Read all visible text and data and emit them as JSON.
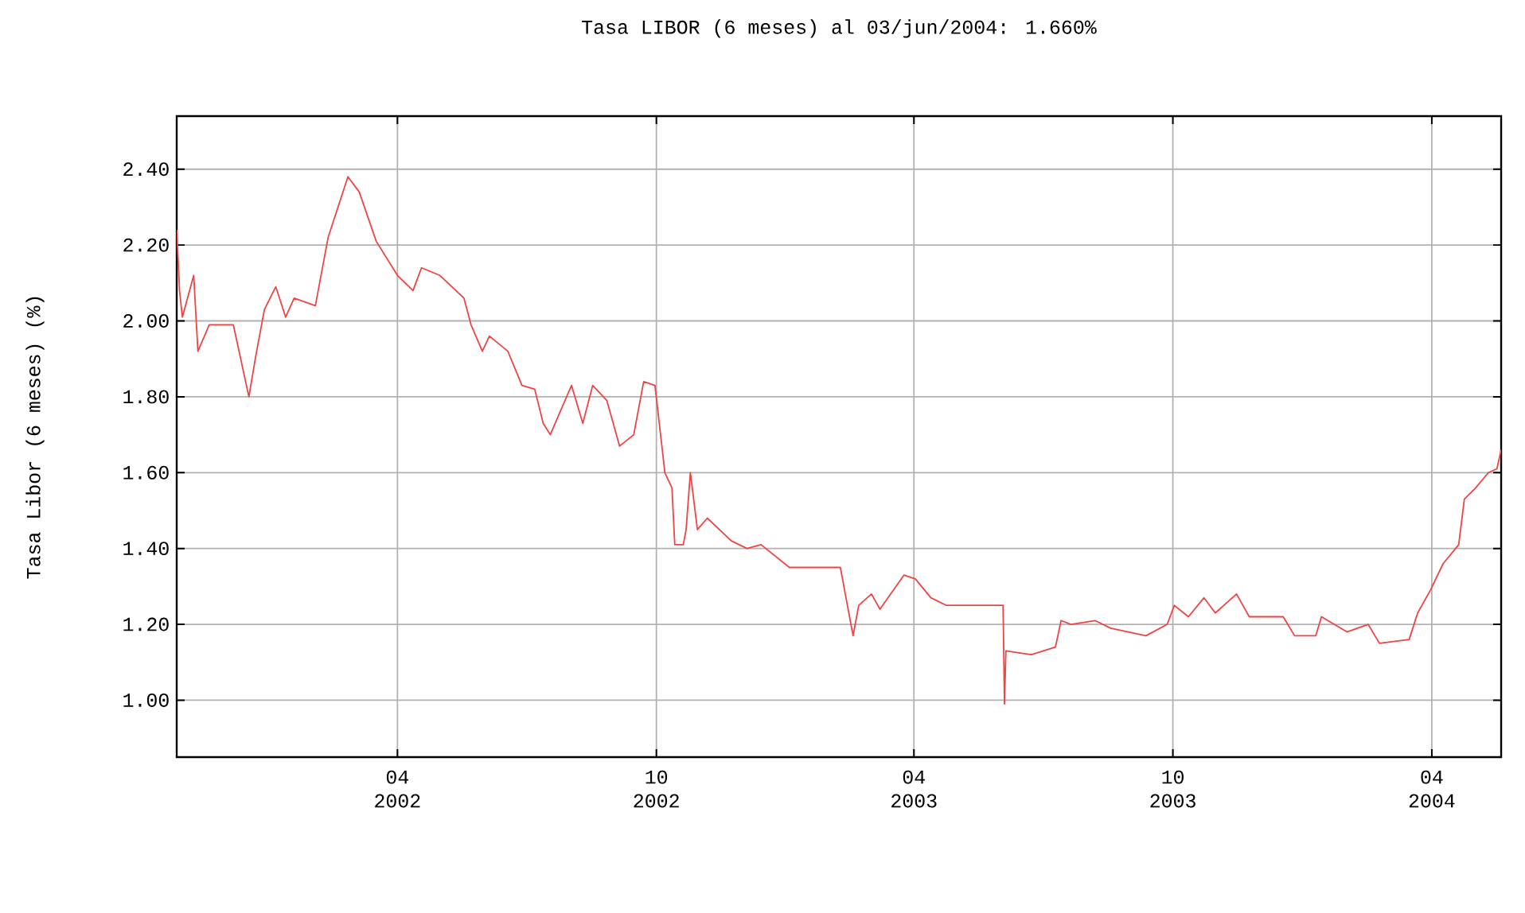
{
  "chart_data": {
    "type": "line",
    "title": "Tasa LIBOR (6 meses) al 03/jun/2004: 1.660%",
    "ylabel": "Tasa Libor (6 meses) (%)",
    "x": [
      "2001-10-27",
      "2001-10-29",
      "2001-10-31",
      "2001-11-08",
      "2001-11-11",
      "2001-11-19",
      "2001-12-06",
      "2001-12-17",
      "2001-12-22",
      "2001-12-28",
      "2002-01-05",
      "2002-01-12",
      "2002-01-18",
      "2002-02-02",
      "2002-02-11",
      "2002-02-25",
      "2002-03-05",
      "2002-03-17",
      "2002-04-01",
      "2002-04-12",
      "2002-04-18",
      "2002-05-01",
      "2002-05-18",
      "2002-05-23",
      "2002-05-31",
      "2002-06-05",
      "2002-06-18",
      "2002-06-28",
      "2002-07-07",
      "2002-07-13",
      "2002-07-18",
      "2002-08-02",
      "2002-08-10",
      "2002-08-17",
      "2002-08-27",
      "2002-09-05",
      "2002-09-15",
      "2002-09-22",
      "2002-09-30",
      "2002-10-07",
      "2002-10-12",
      "2002-10-14",
      "2002-10-20",
      "2002-10-22",
      "2002-10-25",
      "2002-10-30",
      "2002-11-06",
      "2002-11-23",
      "2002-12-04",
      "2002-12-14",
      "2003-01-03",
      "2003-02-08",
      "2003-02-17",
      "2003-02-21",
      "2003-03-02",
      "2003-03-08",
      "2003-03-25",
      "2003-04-02",
      "2003-04-13",
      "2003-04-24",
      "2003-06-03",
      "2003-06-04",
      "2003-06-05",
      "2003-06-23",
      "2003-07-10",
      "2003-07-14",
      "2003-07-21",
      "2003-08-07",
      "2003-08-18",
      "2003-09-12",
      "2003-09-27",
      "2003-10-02",
      "2003-10-12",
      "2003-10-23",
      "2003-10-31",
      "2003-11-15",
      "2003-11-24",
      "2003-12-18",
      "2003-12-26",
      "2004-01-10",
      "2004-01-14",
      "2004-02-01",
      "2004-02-16",
      "2004-02-24",
      "2004-03-16",
      "2004-03-22",
      "2004-03-31",
      "2004-04-09",
      "2004-04-20",
      "2004-04-24",
      "2004-05-02",
      "2004-05-11",
      "2004-05-17",
      "2004-05-20"
    ],
    "series": [
      {
        "color": "#ee4444",
        "values": [
          2.24,
          2.08,
          2.01,
          2.12,
          1.92,
          1.99,
          1.99,
          1.8,
          1.91,
          2.03,
          2.09,
          2.01,
          2.06,
          2.04,
          2.22,
          2.38,
          2.34,
          2.21,
          2.12,
          2.08,
          2.14,
          2.12,
          2.06,
          1.99,
          1.92,
          1.96,
          1.92,
          1.83,
          1.82,
          1.73,
          1.7,
          1.83,
          1.73,
          1.83,
          1.79,
          1.67,
          1.7,
          1.84,
          1.83,
          1.6,
          1.56,
          1.41,
          1.41,
          1.45,
          1.6,
          1.45,
          1.48,
          1.42,
          1.4,
          1.41,
          1.35,
          1.35,
          1.17,
          1.25,
          1.28,
          1.24,
          1.33,
          1.32,
          1.27,
          1.25,
          1.25,
          0.99,
          1.13,
          1.12,
          1.14,
          1.21,
          1.2,
          1.21,
          1.19,
          1.17,
          1.2,
          1.25,
          1.22,
          1.27,
          1.23,
          1.28,
          1.22,
          1.22,
          1.17,
          1.17,
          1.22,
          1.18,
          1.2,
          1.15,
          1.16,
          1.23,
          1.29,
          1.36,
          1.41,
          1.53,
          1.56,
          1.6,
          1.61,
          1.66
        ]
      }
    ],
    "xlim": [
      "2001-10-27",
      "2004-05-20"
    ],
    "xticks": [
      {
        "value": "2002-04",
        "label": "04 2002"
      },
      {
        "value": "2002-10",
        "label": "10 2002"
      },
      {
        "value": "2003-04",
        "label": "04 2003"
      },
      {
        "value": "2003-10",
        "label": "10 2003"
      },
      {
        "value": "2004-04",
        "label": "04 2004"
      }
    ],
    "ylim": [
      0.85,
      2.54
    ],
    "yticks": [
      {
        "value": 1.0,
        "label": "1.00"
      },
      {
        "value": 1.2,
        "label": "1.20"
      },
      {
        "value": 1.4,
        "label": "1.40"
      },
      {
        "value": 1.6,
        "label": "1.60"
      },
      {
        "value": 1.8,
        "label": "1.80"
      },
      {
        "value": 2.0,
        "label": "2.00"
      },
      {
        "value": 2.2,
        "label": "2.20"
      },
      {
        "value": 2.4,
        "label": "2.40"
      }
    ],
    "grid": true,
    "marker": "none",
    "line_style": "solid"
  }
}
